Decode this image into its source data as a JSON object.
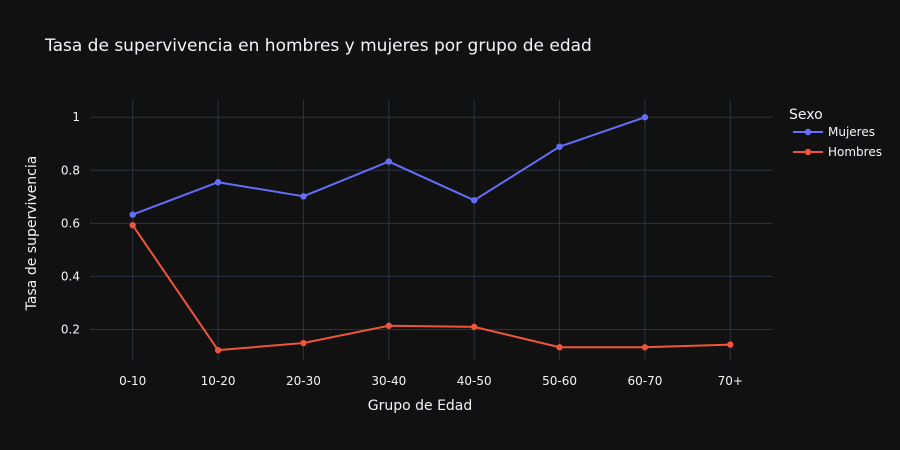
{
  "chart_data": {
    "type": "line",
    "title": "Tasa de supervivencia en hombres y mujeres por grupo de edad",
    "xlabel": "Grupo de Edad",
    "ylabel": "Tasa de supervivencia",
    "categories": [
      "0-10",
      "10-20",
      "20-30",
      "30-40",
      "40-50",
      "50-60",
      "60-70",
      "70+"
    ],
    "yticks": [
      0.2,
      0.4,
      0.6,
      0.8,
      1
    ],
    "ytick_labels": [
      "0.2",
      "0.4",
      "0.6",
      "0.8",
      "1"
    ],
    "ylim": [
      0.085,
      1.065
    ],
    "grid": true,
    "legend": {
      "title": "Sexo",
      "placement": "right"
    },
    "series": [
      {
        "name": "Mujeres",
        "color": "#636efa",
        "values": [
          0.633,
          0.755,
          0.702,
          0.833,
          0.687,
          0.889,
          1.0,
          null
        ]
      },
      {
        "name": "Hombres",
        "color": "#ef553b",
        "values": [
          0.593,
          0.122,
          0.149,
          0.214,
          0.21,
          0.133,
          0.133,
          0.143
        ]
      }
    ]
  }
}
